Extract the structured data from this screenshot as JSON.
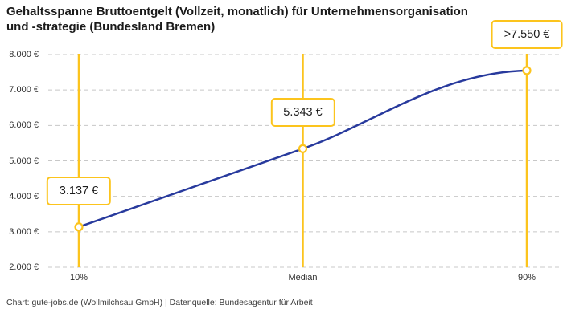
{
  "title": {
    "full": "Gehaltsspanne Bruttoentgelt (Vollzeit, monatlich) für Unternehmensorganisation und -strategie (Bundesland Bremen)",
    "line1": "Gehaltsspanne Bruttoentgelt (Vollzeit, monatlich) für Unternehmensorganisation",
    "line2": "und -strategie (Bundesland Bremen)"
  },
  "footer": "Chart: gute-jobs.de (Wollmilchsau GmbH) | Datenquelle: Bundesagentur für Arbeit",
  "colors": {
    "accent_yellow": "#fcc41d",
    "line_blue": "#283a9d",
    "grid_gray": "#c8c8c8",
    "title_color": "#1a1a1a",
    "axis_text": "#2e2e2e",
    "footer_text": "#3d3d3d"
  },
  "chart_data": {
    "type": "line",
    "title": "Gehaltsspanne Bruttoentgelt (Vollzeit, monatlich) für Unternehmensorganisation und -strategie (Bundesland Bremen)",
    "categories": [
      "10%",
      "Median",
      "90%"
    ],
    "values": [
      3137,
      5343,
      7550
    ],
    "points": [
      {
        "label": "10%",
        "value": 3137,
        "display": "3.137 €"
      },
      {
        "label": "Median",
        "value": 5343,
        "display": "5.343 €"
      },
      {
        "label": "90%",
        "value": 7550,
        "display": ">7.550 €"
      }
    ],
    "ylim": [
      2000,
      8000
    ],
    "y_ticks": [
      {
        "value": 8000,
        "label": "8.000 €"
      },
      {
        "value": 7000,
        "label": "7.000 €"
      },
      {
        "value": 6000,
        "label": "6.000 €"
      },
      {
        "value": 5000,
        "label": "5.000 €"
      },
      {
        "value": 4000,
        "label": "4.000 €"
      },
      {
        "value": 3000,
        "label": "3.000 €"
      },
      {
        "value": 2000,
        "label": "2.000 €"
      }
    ],
    "grid": "horizontal-dashed",
    "marker": "open-circle",
    "legend": "none",
    "xlabel": "",
    "ylabel": ""
  }
}
